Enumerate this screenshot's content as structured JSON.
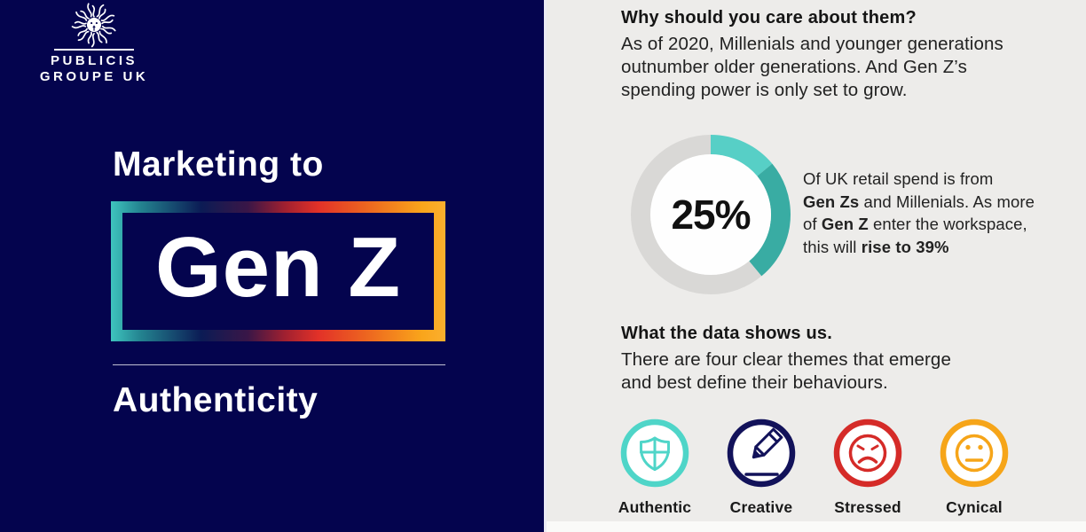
{
  "brand": {
    "line1": "PUBLICIS",
    "line2": "GROUPE UK"
  },
  "left_panel": {
    "background": "#04044E",
    "title_top": "Marketing to",
    "title_main": "Gen Z",
    "subtitle": "Authenticity",
    "box_gradient_stops": [
      "#3EC4BE 0%",
      "#23828F 9%",
      "#0B1B55 27%",
      "#3A1647 41%",
      "#A02030 52%",
      "#E23128 62%",
      "#EE6B1F 78%",
      "#F9A51B 93%",
      "#FBAF2E 100%"
    ]
  },
  "right_panel": {
    "background": "#EDECEA",
    "section1": {
      "heading": "Why should you care about them?",
      "body": "As of 2020, Millenials and younger generations\noutnumber older generations. And Gen Z’s\nspending power is only set to grow."
    },
    "stat": {
      "lines": [
        [
          {
            "t": "Of UK retail spend is from",
            "b": false
          }
        ],
        [
          {
            "t": "Gen Zs",
            "b": true
          },
          {
            "t": " and Millenials. As more",
            "b": false
          }
        ],
        [
          {
            "t": "of ",
            "b": false
          },
          {
            "t": "Gen Z",
            "b": true
          },
          {
            "t": " enter the workspace,",
            "b": false
          }
        ],
        [
          {
            "t": "this will ",
            "b": false
          },
          {
            "t": "rise to 39%",
            "b": true
          }
        ]
      ]
    },
    "section2": {
      "heading": "What the data shows us.",
      "body": "There are four clear themes that emerge\nand best define their behaviours."
    },
    "themes": [
      {
        "label": "Authentic",
        "icon": "shield-icon",
        "color": "#4FD5C8"
      },
      {
        "label": "Creative",
        "icon": "pencil-icon",
        "color": "#12125A"
      },
      {
        "label": "Stressed",
        "icon": "sad-face-icon",
        "color": "#D52B28"
      },
      {
        "label": "Cynical",
        "icon": "neutral-face-icon",
        "color": "#F6A519"
      }
    ]
  },
  "chart_data": {
    "type": "pie",
    "subtype": "donut",
    "center_label": "25%",
    "title": "Share of UK retail spend from Gen Z and Millennials",
    "annotation": "25% today, will rise to 39%",
    "legend_position": "none",
    "segments": [
      {
        "name": "teal-light-rise-portion",
        "value": 14,
        "color": "#57CFC6"
      },
      {
        "name": "teal-dark-current-25pct",
        "value": 25,
        "color": "#39ACA3"
      },
      {
        "name": "remainder",
        "value": 61,
        "color": "#D9D8D6"
      }
    ]
  }
}
